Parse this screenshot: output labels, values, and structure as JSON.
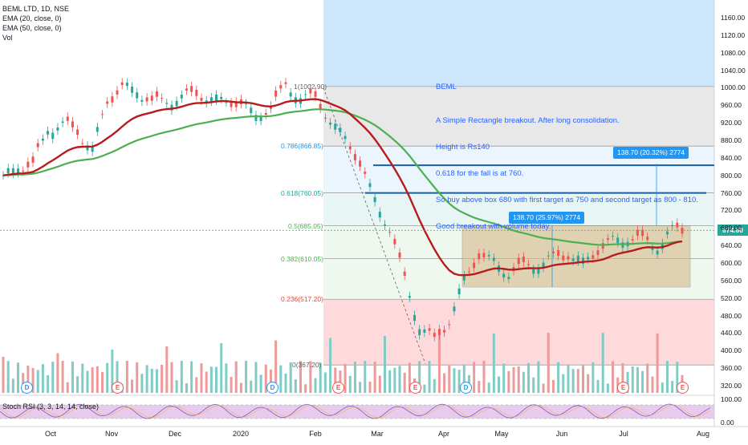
{
  "legend": {
    "symbol": "BEML LTD, 1D, NSE",
    "ema20": "EMA (20, close, 0)",
    "ema50": "EMA (50, close, 0)",
    "vol": "Vol"
  },
  "note": {
    "line1": "BEML",
    "line2": "A Simple Rectangle breakout. After long consolidation.",
    "line3": "Height is Rs140",
    "line4": "0.618 for the fall is at 760.",
    "line5": "So buy above box 680 with first target as 750 and second target as 800 - 810.",
    "line6": "Good breakout with volume today."
  },
  "price_tag": "674.60",
  "targets": [
    "138.70 (25.97%) 2774",
    "138.70 (20.32%) 2774"
  ],
  "stoch_label": "Stoch RSI (3, 3, 14, 14, close)",
  "stoch_axis": [
    "100.00",
    "0.00"
  ],
  "events": [
    "D",
    "E",
    "D",
    "E",
    "E",
    "D",
    "E",
    "E"
  ],
  "colors": {
    "ema20": "#b71c1c",
    "ema50": "#4caf50",
    "vol_up": "#80cbc4",
    "vol_down": "#ef9a9a",
    "candle_up": "#26a69a",
    "candle_down": "#ef5350",
    "target_line": "#1a5fa0",
    "box_fill": "#d4b483",
    "highlight": "#bbdefb"
  },
  "chart_data": {
    "type": "candlestick",
    "y_axis_ticks": [
      "1160.00",
      "1120.00",
      "1080.00",
      "1040.00",
      "1000.00",
      "960.00",
      "920.00",
      "880.00",
      "840.00",
      "800.00",
      "760.00",
      "720.00",
      "680.00",
      "640.00",
      "600.00",
      "560.00",
      "520.00",
      "480.00",
      "440.00",
      "400.00",
      "360.00",
      "320.00"
    ],
    "x_axis_ticks": [
      "Oct",
      "Nov",
      "Dec",
      "2020",
      "Feb",
      "Mar",
      "Apr",
      "May",
      "Jun",
      "Jul",
      "Aug"
    ],
    "fib_levels": [
      {
        "ratio": "1",
        "label": "1(1002.90)",
        "price": 1002.9
      },
      {
        "ratio": "0.786",
        "label": "0.786(866.85)",
        "price": 866.85
      },
      {
        "ratio": "0.618",
        "label": "0.618(760.05)",
        "price": 760.05
      },
      {
        "ratio": "0.5",
        "label": "0.5(685.05)",
        "price": 685.05
      },
      {
        "ratio": "0.382",
        "label": "0.382(610.05)",
        "price": 610.05
      },
      {
        "ratio": "0.236",
        "label": "0.236(517.20)",
        "price": 517.2
      },
      {
        "ratio": "0",
        "label": "0(367.20)",
        "price": 367.2
      }
    ],
    "rectangle": {
      "from": "Apr",
      "to": "Jul",
      "high": 685,
      "low": 545
    },
    "target_lines": [
      760,
      823
    ],
    "last_close": 674.6,
    "closes": [
      {
        "t": "Sep",
        "c": 800
      },
      {
        "t": "Sep",
        "c": 815
      },
      {
        "t": "Sep",
        "c": 830
      },
      {
        "t": "Oct",
        "c": 900
      },
      {
        "t": "Oct",
        "c": 925
      },
      {
        "t": "Oct",
        "c": 890
      },
      {
        "t": "Oct",
        "c": 870
      },
      {
        "t": "Nov",
        "c": 960
      },
      {
        "t": "Nov",
        "c": 1010
      },
      {
        "t": "Nov",
        "c": 985
      },
      {
        "t": "Nov",
        "c": 975
      },
      {
        "t": "Dec",
        "c": 960
      },
      {
        "t": "Dec",
        "c": 990
      },
      {
        "t": "Dec",
        "c": 975
      },
      {
        "t": "Dec",
        "c": 985
      },
      {
        "t": "Jan",
        "c": 960
      },
      {
        "t": "Jan",
        "c": 970
      },
      {
        "t": "Jan",
        "c": 930
      },
      {
        "t": "Jan",
        "c": 960
      },
      {
        "t": "Jan",
        "c": 1000
      },
      {
        "t": "Feb",
        "c": 985
      },
      {
        "t": "Feb",
        "c": 970
      },
      {
        "t": "Feb",
        "c": 930
      },
      {
        "t": "Feb",
        "c": 880
      },
      {
        "t": "Feb",
        "c": 830
      },
      {
        "t": "Mar",
        "c": 740
      },
      {
        "t": "Mar",
        "c": 680
      },
      {
        "t": "Mar",
        "c": 560
      },
      {
        "t": "Mar",
        "c": 460
      },
      {
        "t": "Mar",
        "c": 420
      },
      {
        "t": "Apr",
        "c": 470
      },
      {
        "t": "Apr",
        "c": 560
      },
      {
        "t": "Apr",
        "c": 620
      },
      {
        "t": "Apr",
        "c": 600
      },
      {
        "t": "May",
        "c": 580
      },
      {
        "t": "May",
        "c": 590
      },
      {
        "t": "May",
        "c": 600
      },
      {
        "t": "May",
        "c": 610
      },
      {
        "t": "Jun",
        "c": 620
      },
      {
        "t": "Jun",
        "c": 600
      },
      {
        "t": "Jun",
        "c": 630
      },
      {
        "t": "Jun",
        "c": 650
      },
      {
        "t": "Jul",
        "c": 660
      },
      {
        "t": "Jul",
        "c": 650
      },
      {
        "t": "Jul",
        "c": 640
      },
      {
        "t": "Jul",
        "c": 675
      }
    ]
  }
}
